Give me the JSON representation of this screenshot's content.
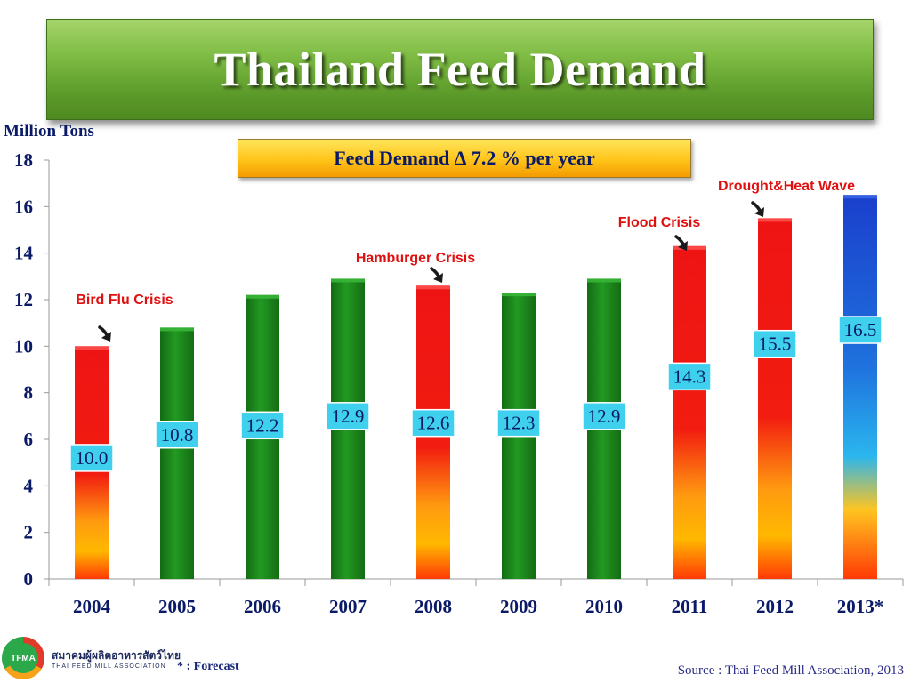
{
  "header": {
    "title": "Thailand Feed Demand"
  },
  "growth_box": {
    "text": "Feed Demand ∆ 7.2 % per year"
  },
  "footer": {
    "forecast_note": "* : Forecast",
    "source": "Source : Thai Feed Mill Association, 2013",
    "logo_abbrev": "TFMA",
    "logo_thai": "สมาคมผู้ผลิตอาหารสัตว์ไทย",
    "logo_english": "THAI FEED MILL ASSOCIATION"
  },
  "colors": {
    "crisis_bar": "#e81010",
    "normal_bar": "#1e8a1e",
    "forecast_bar": "#1a3fcc",
    "value_label_bg": "#3fd0ee",
    "annotation_text": "#e01010",
    "axis_text": "#0a1a66",
    "title_banner": "#6aaa32"
  },
  "chart_data": {
    "type": "bar",
    "title": "Thailand Feed Demand",
    "ylabel": "Million Tons",
    "xlabel": "",
    "ylim": [
      0,
      18
    ],
    "yticks": [
      0,
      2,
      4,
      6,
      8,
      10,
      12,
      14,
      16,
      18
    ],
    "grid": false,
    "categories": [
      "2004",
      "2005",
      "2006",
      "2007",
      "2008",
      "2009",
      "2010",
      "2011",
      "2012",
      "2013*"
    ],
    "values": [
      10.0,
      10.8,
      12.2,
      12.9,
      12.6,
      12.3,
      12.9,
      14.3,
      15.5,
      16.5
    ],
    "value_labels": [
      "10.0",
      "10.8",
      "12.2",
      "12.9",
      "12.6",
      "12.3",
      "12.9",
      "14.3",
      "15.5",
      "16.5"
    ],
    "bar_kinds": [
      "crisis",
      "normal",
      "normal",
      "normal",
      "crisis",
      "normal",
      "normal",
      "crisis",
      "crisis",
      "forecast"
    ],
    "annotations": [
      {
        "category": "2004",
        "text": "Bird Flu Crisis"
      },
      {
        "category": "2008",
        "text": "Hamburger Crisis"
      },
      {
        "category": "2011",
        "text": "Flood Crisis"
      },
      {
        "category": "2012",
        "text": "Drought&Heat Wave"
      }
    ]
  }
}
